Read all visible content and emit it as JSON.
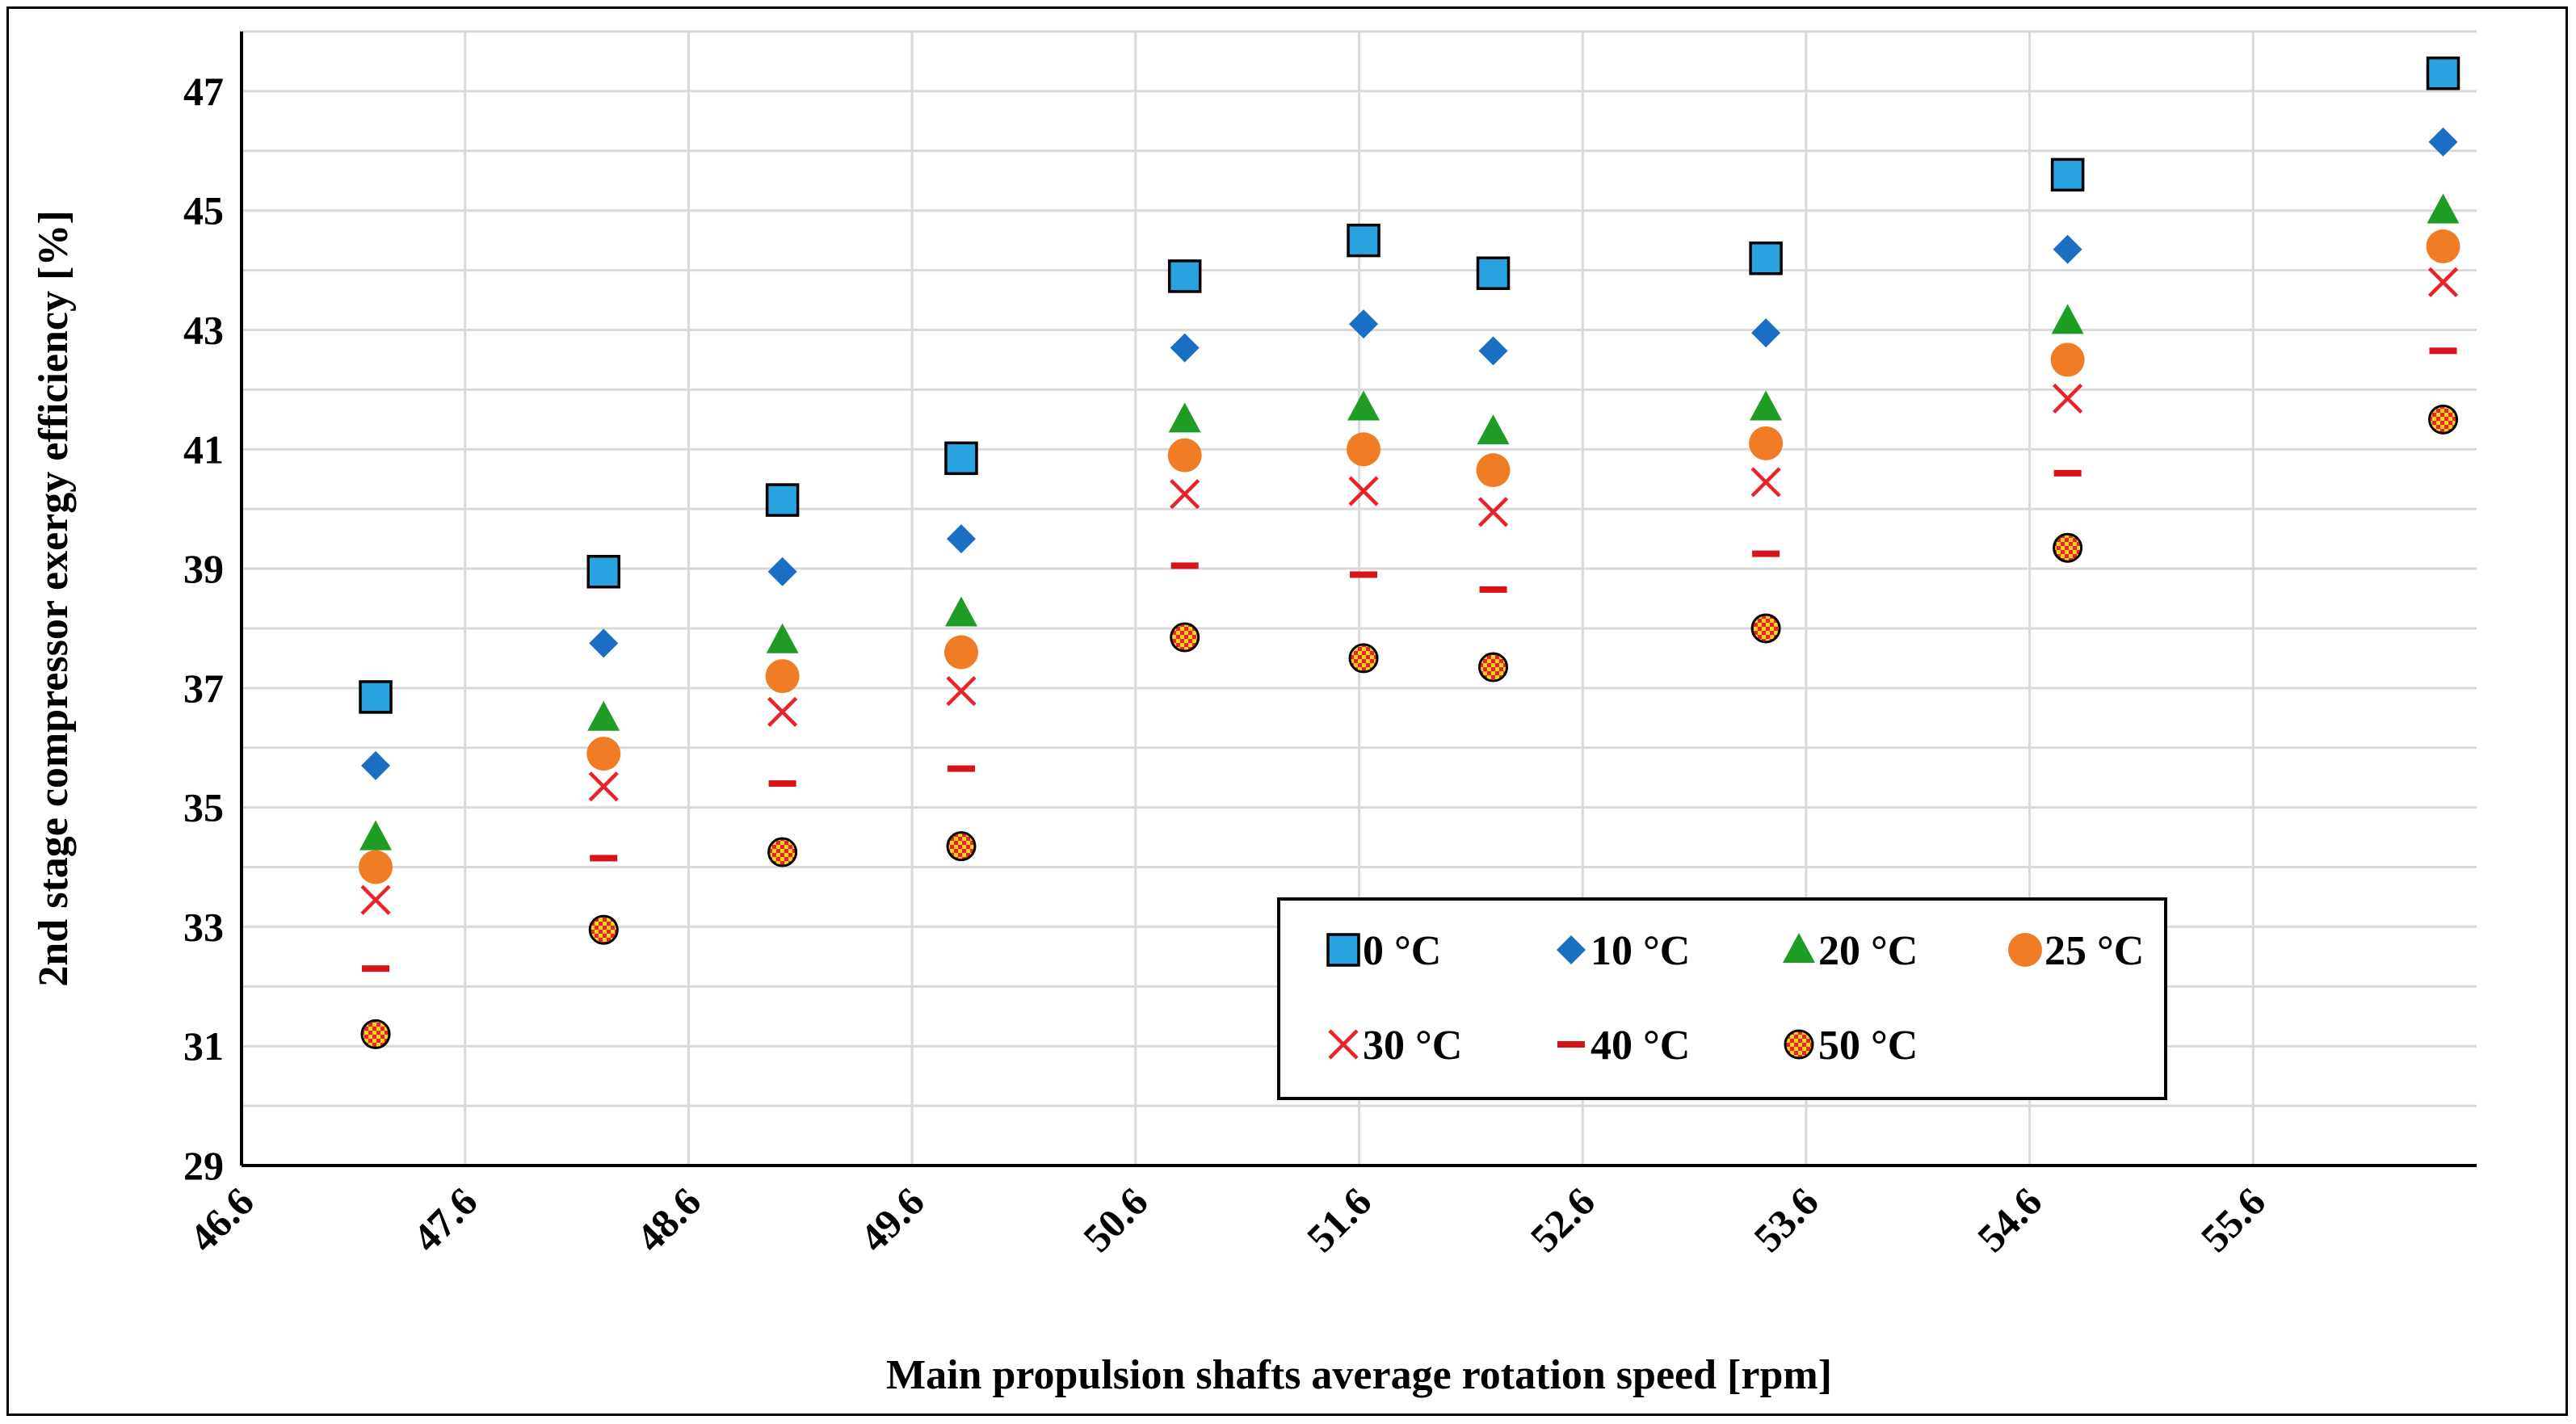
{
  "chart_data": {
    "type": "scatter",
    "title": "",
    "xlabel": "Main propulsion shafts average rotation speed [rpm]",
    "ylabel": "2nd stage compressor exergy efficiency [%]",
    "xlim": [
      46.6,
      56.6
    ],
    "ylim": [
      29,
      48
    ],
    "x_ticks": [
      "46.6",
      "47.6",
      "48.6",
      "49.6",
      "50.6",
      "51.6",
      "52.6",
      "53.6",
      "54.6",
      "55.6"
    ],
    "y_ticks": [
      "29",
      "31",
      "33",
      "35",
      "37",
      "39",
      "41",
      "43",
      "45",
      "47"
    ],
    "grid": true,
    "legend_position": "bottom-right inside plot",
    "x": [
      47.2,
      48.22,
      49.02,
      49.82,
      50.82,
      51.62,
      52.2,
      53.42,
      54.77,
      56.45
    ],
    "series": [
      {
        "name": "0 °C",
        "marker": "square",
        "color": "#29A3E0",
        "values": [
          36.85,
          38.95,
          40.15,
          40.85,
          43.9,
          44.5,
          43.95,
          44.2,
          45.6,
          47.3
        ]
      },
      {
        "name": "10 °C",
        "marker": "diamond",
        "color": "#1A6FC4",
        "values": [
          35.7,
          37.75,
          38.95,
          39.5,
          42.7,
          43.1,
          42.65,
          42.95,
          44.35,
          46.15
        ]
      },
      {
        "name": "20 °C",
        "marker": "triangle",
        "color": "#1E9C24",
        "values": [
          34.5,
          36.5,
          37.8,
          38.25,
          41.5,
          41.7,
          41.3,
          41.7,
          43.15,
          45.0
        ]
      },
      {
        "name": "25 °C",
        "marker": "circle",
        "color": "#F07D26",
        "values": [
          34.0,
          35.9,
          37.2,
          37.6,
          40.9,
          41.0,
          40.65,
          41.1,
          42.5,
          44.4
        ]
      },
      {
        "name": "30 °C",
        "marker": "x",
        "color": "#E8232A",
        "values": [
          33.45,
          35.35,
          36.6,
          36.95,
          40.25,
          40.3,
          39.95,
          40.45,
          41.85,
          43.8
        ]
      },
      {
        "name": "40 °C",
        "marker": "dash",
        "color": "#D7141A",
        "values": [
          32.3,
          34.15,
          35.4,
          35.65,
          39.05,
          38.9,
          38.65,
          39.25,
          40.6,
          42.65
        ]
      },
      {
        "name": "50 °C",
        "marker": "checkered-circle",
        "color": "#E8232A",
        "values": [
          31.2,
          32.95,
          34.25,
          34.35,
          37.85,
          37.5,
          37.35,
          38.0,
          39.35,
          41.5
        ]
      }
    ]
  }
}
